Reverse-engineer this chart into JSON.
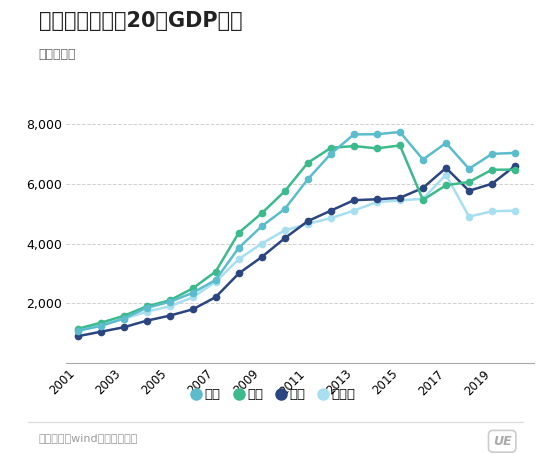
{
  "title": "东北四大城市近20年GDP走势",
  "subtitle": "单位：亿元",
  "source": "数据来源：wind、各市统计局",
  "years": [
    2001,
    2002,
    2003,
    2004,
    2005,
    2006,
    2007,
    2008,
    2009,
    2010,
    2011,
    2012,
    2013,
    2014,
    2015,
    2016,
    2017,
    2018,
    2019,
    2020
  ],
  "dalian": [
    1080,
    1243,
    1490,
    1850,
    2050,
    2350,
    2784,
    3858,
    4580,
    5158,
    6150,
    7000,
    7650,
    7655,
    7731,
    6810,
    7363,
    6500,
    7000,
    7030
  ],
  "shenyang": [
    1150,
    1350,
    1580,
    1900,
    2100,
    2500,
    3064,
    4359,
    5015,
    5750,
    6700,
    7200,
    7260,
    7183,
    7280,
    5460,
    5950,
    6060,
    6470,
    6470
  ],
  "changchun": [
    900,
    1050,
    1200,
    1420,
    1590,
    1800,
    2210,
    3000,
    3550,
    4180,
    4750,
    5100,
    5450,
    5480,
    5530,
    5860,
    6530,
    5765,
    6000,
    6600
  ],
  "haerbin": [
    1100,
    1280,
    1480,
    1720,
    1900,
    2200,
    2720,
    3480,
    4000,
    4440,
    4660,
    4850,
    5100,
    5390,
    5440,
    5500,
    6300,
    4900,
    5080,
    5100
  ],
  "dalian_color": "#5bbccc",
  "shenyang_color": "#3cba8c",
  "changchun_color": "#2a4580",
  "haerbin_color": "#a8dff0",
  "bg_color": "#ffffff",
  "grid_color": "#cccccc",
  "ylim": [
    0,
    8500
  ],
  "yticks": [
    0,
    2000,
    4000,
    6000,
    8000
  ],
  "xticks": [
    2001,
    2003,
    2005,
    2007,
    2009,
    2011,
    2013,
    2015,
    2017,
    2019
  ],
  "legend_labels": [
    "大连",
    "沈阳",
    "长春",
    "哈尔滨"
  ]
}
